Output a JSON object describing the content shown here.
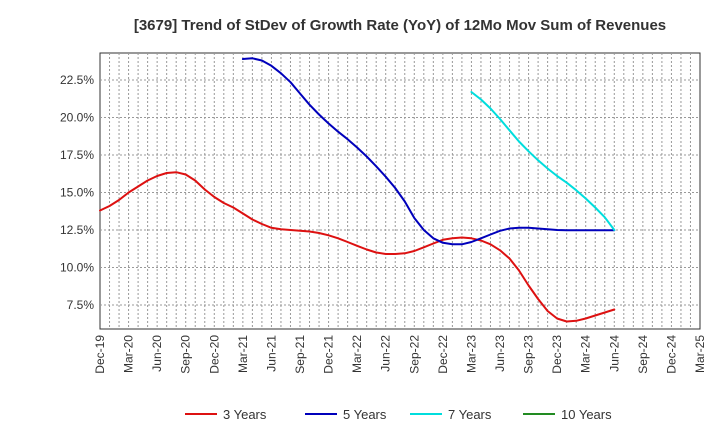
{
  "chart_data": {
    "type": "line",
    "title": "[3679]  Trend of StDev of Growth Rate (YoY) of 12Mo Mov Sum of Revenues",
    "xlabel": "",
    "ylabel": "",
    "ylim": [
      5.9,
      24.3
    ],
    "y_ticks": [
      7.5,
      10.0,
      12.5,
      15.0,
      17.5,
      20.0,
      22.5
    ],
    "y_tick_labels": [
      "7.5%",
      "10.0%",
      "12.5%",
      "15.0%",
      "17.5%",
      "20.0%",
      "22.5%"
    ],
    "x_tick_labels": [
      "Dec-19",
      "Mar-20",
      "Jun-20",
      "Sep-20",
      "Dec-20",
      "Mar-21",
      "Jun-21",
      "Sep-21",
      "Dec-21",
      "Mar-22",
      "Jun-22",
      "Sep-22",
      "Dec-22",
      "Mar-23",
      "Jun-23",
      "Sep-23",
      "Dec-23",
      "Mar-24",
      "Jun-24",
      "Sep-24",
      "Dec-24",
      "Mar-25"
    ],
    "grid": true,
    "legend_position": "bottom",
    "series": [
      {
        "name": "3 Years",
        "color": "#dd1111",
        "start_index": 0,
        "values": [
          13.8,
          14.1,
          14.5,
          15.0,
          15.4,
          15.8,
          16.1,
          16.3,
          16.35,
          16.2,
          15.8,
          15.2,
          14.7,
          14.3,
          14.0,
          13.6,
          13.2,
          12.9,
          12.65,
          12.55,
          12.5,
          12.45,
          12.4,
          12.3,
          12.15,
          11.95,
          11.7,
          11.45,
          11.2,
          11.0,
          10.9,
          10.9,
          10.95,
          11.1,
          11.35,
          11.6,
          11.85,
          11.95,
          12.0,
          11.95,
          11.8,
          11.55,
          11.15,
          10.6,
          9.8,
          8.8,
          7.9,
          7.1,
          6.6,
          6.4,
          6.45,
          6.6,
          6.8,
          7.0,
          7.2
        ]
      },
      {
        "name": "5 Years",
        "color": "#0000bb",
        "start_index": 15,
        "values": [
          23.9,
          23.95,
          23.8,
          23.45,
          22.95,
          22.35,
          21.6,
          20.85,
          20.2,
          19.6,
          19.05,
          18.55,
          18.0,
          17.4,
          16.75,
          16.05,
          15.3,
          14.4,
          13.3,
          12.5,
          11.95,
          11.65,
          11.55,
          11.55,
          11.7,
          11.95,
          12.2,
          12.45,
          12.6,
          12.65,
          12.65,
          12.6,
          12.55,
          12.5,
          12.48,
          12.48,
          12.48,
          12.48,
          12.48,
          12.48
        ]
      },
      {
        "name": "7 Years",
        "color": "#00dddd",
        "start_index": 39,
        "values": [
          21.7,
          21.2,
          20.6,
          19.9,
          19.15,
          18.4,
          17.75,
          17.15,
          16.6,
          16.1,
          15.65,
          15.15,
          14.6,
          14.0,
          13.35,
          12.5
        ]
      },
      {
        "name": "10 Years",
        "color": "#228B22",
        "start_index": 0,
        "values": []
      }
    ]
  }
}
